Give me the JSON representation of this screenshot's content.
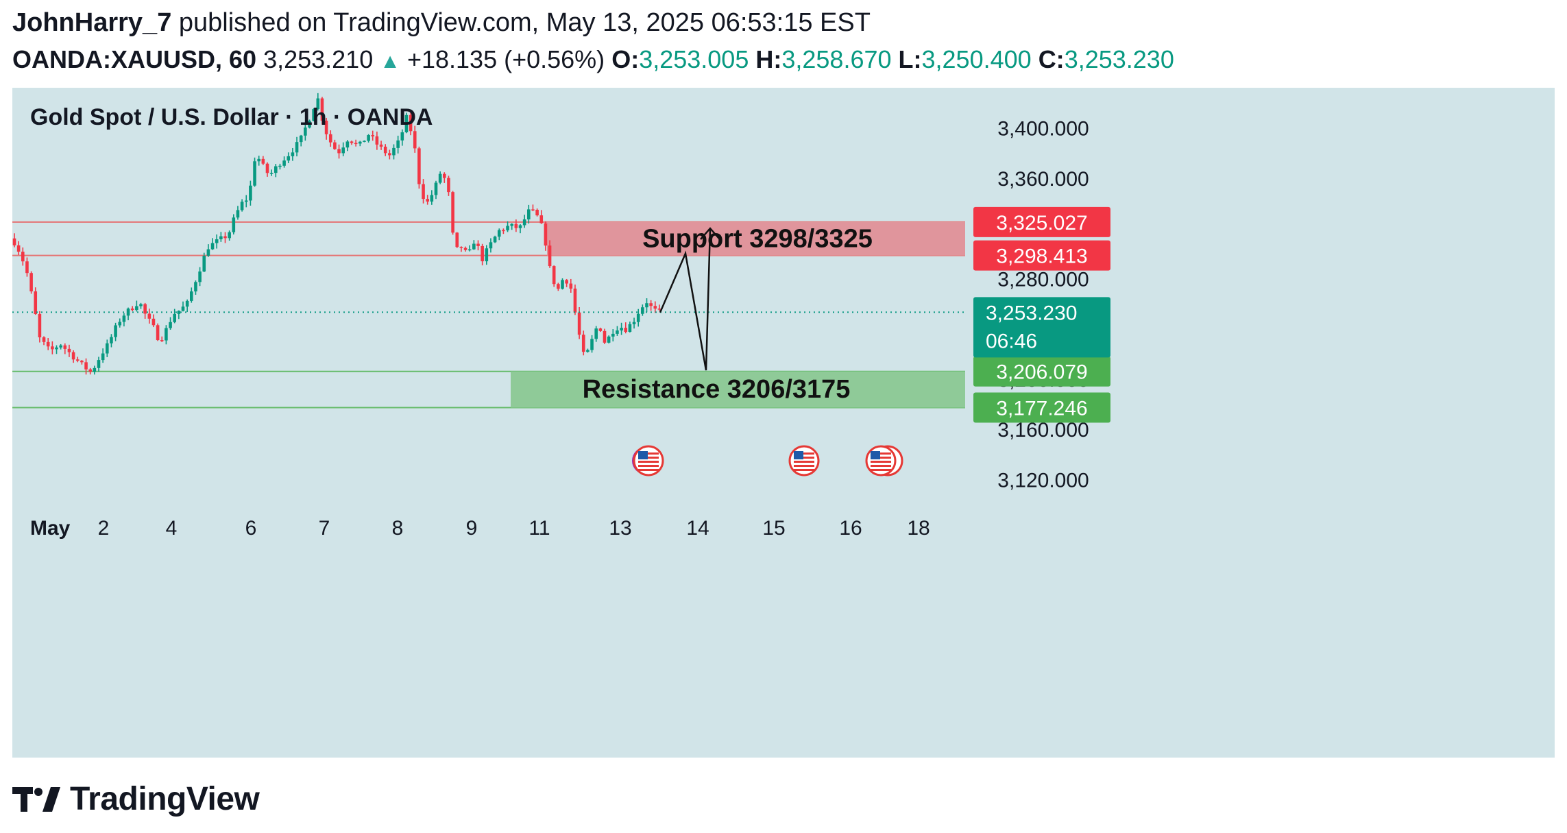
{
  "header": {
    "author": "JohnHarry_7",
    "published_text": "published on TradingView.com, May 13, 2025 06:53:15 EST",
    "symbol": "OANDA:XAUUSD, 60",
    "last_price": "3,253.210",
    "change": "+18.135 (+0.56%)",
    "open_label": "O:",
    "open": "3,253.005",
    "high_label": "H:",
    "high": "3,258.670",
    "low_label": "L:",
    "low": "3,250.400",
    "close_label": "C:",
    "close": "3,253.230"
  },
  "brand": {
    "name": "TradingView",
    "logo_icon": "tradingview-logo-icon"
  },
  "colors": {
    "up": "#089981",
    "down": "#f23645",
    "chart_bg": "#d1e4e8",
    "support_zone": "#e0959c",
    "resistance_zone": "#8fca98",
    "red_tag": "#f23645",
    "green_tag": "#4caf50",
    "price_tag": "#089981"
  },
  "chart_data": {
    "type": "candlestick",
    "title": "Gold Spot / U.S. Dollar · 1h · OANDA",
    "ylim": [
      3100,
      3432
    ],
    "x_ticks": [
      "May",
      "2",
      "4",
      "6",
      "7",
      "8",
      "9",
      "11",
      "13",
      "14",
      "15",
      "16",
      "18"
    ],
    "y_ticks": [
      {
        "value": 3400,
        "label": "3,400.000"
      },
      {
        "value": 3360,
        "label": "3,360.000"
      },
      {
        "value": 3280,
        "label": "3,280.000"
      },
      {
        "value": 3200,
        "label": "3,200.000"
      },
      {
        "value": 3160,
        "label": "3,160.000"
      },
      {
        "value": 3120,
        "label": "3,120.000"
      }
    ],
    "price_path": [
      [
        0,
        3312
      ],
      [
        10,
        3302
      ],
      [
        20,
        3288
      ],
      [
        30,
        3262
      ],
      [
        40,
        3232
      ],
      [
        55,
        3222
      ],
      [
        70,
        3228
      ],
      [
        85,
        3220
      ],
      [
        100,
        3212
      ],
      [
        115,
        3205
      ],
      [
        130,
        3220
      ],
      [
        140,
        3228
      ],
      [
        150,
        3240
      ],
      [
        160,
        3250
      ],
      [
        175,
        3257
      ],
      [
        185,
        3262
      ],
      [
        195,
        3250
      ],
      [
        205,
        3242
      ],
      [
        215,
        3230
      ],
      [
        225,
        3240
      ],
      [
        235,
        3252
      ],
      [
        245,
        3255
      ],
      [
        255,
        3260
      ],
      [
        265,
        3275
      ],
      [
        275,
        3290
      ],
      [
        285,
        3305
      ],
      [
        300,
        3310
      ],
      [
        315,
        3315
      ],
      [
        325,
        3330
      ],
      [
        335,
        3340
      ],
      [
        345,
        3345
      ],
      [
        355,
        3380
      ],
      [
        365,
        3370
      ],
      [
        375,
        3362
      ],
      [
        390,
        3372
      ],
      [
        405,
        3380
      ],
      [
        420,
        3390
      ],
      [
        435,
        3410
      ],
      [
        445,
        3425
      ],
      [
        455,
        3400
      ],
      [
        465,
        3388
      ],
      [
        475,
        3380
      ],
      [
        490,
        3392
      ],
      [
        505,
        3385
      ],
      [
        520,
        3395
      ],
      [
        535,
        3385
      ],
      [
        550,
        3378
      ],
      [
        565,
        3390
      ],
      [
        575,
        3408
      ],
      [
        585,
        3392
      ],
      [
        595,
        3350
      ],
      [
        605,
        3340
      ],
      [
        615,
        3350
      ],
      [
        625,
        3365
      ],
      [
        635,
        3355
      ],
      [
        645,
        3302
      ],
      [
        655,
        3305
      ],
      [
        665,
        3298
      ],
      [
        675,
        3312
      ],
      [
        685,
        3295
      ],
      [
        695,
        3305
      ],
      [
        710,
        3318
      ],
      [
        725,
        3322
      ],
      [
        740,
        3320
      ],
      [
        755,
        3335
      ],
      [
        765,
        3330
      ],
      [
        775,
        3318
      ],
      [
        785,
        3285
      ],
      [
        795,
        3270
      ],
      [
        805,
        3282
      ],
      [
        815,
        3272
      ],
      [
        825,
        3240
      ],
      [
        835,
        3215
      ],
      [
        845,
        3230
      ],
      [
        855,
        3245
      ],
      [
        865,
        3228
      ],
      [
        875,
        3238
      ],
      [
        885,
        3242
      ],
      [
        895,
        3240
      ],
      [
        905,
        3245
      ],
      [
        915,
        3255
      ],
      [
        925,
        3262
      ],
      [
        935,
        3255
      ],
      [
        945,
        3253.23
      ]
    ],
    "support_zone": {
      "label": "Support 3298/3325",
      "from": 3298.413,
      "to": 3325.027
    },
    "resistance_zone": {
      "label": "Resistance 3206/3175",
      "from": 3177.246,
      "to": 3206.079
    },
    "projection_path": [
      [
        945,
        3253
      ],
      [
        982,
        3300
      ],
      [
        1012,
        3207
      ],
      [
        1018,
        3320
      ]
    ],
    "price_tags": [
      {
        "value": 3325.027,
        "label": "3,325.027",
        "color": "red"
      },
      {
        "value": 3298.413,
        "label": "3,298.413",
        "color": "red"
      },
      {
        "value": 3206.079,
        "label": "3,206.079",
        "color": "green"
      },
      {
        "value": 3177.246,
        "label": "3,177.246",
        "color": "green"
      }
    ],
    "current_price": {
      "value": 3253.23,
      "label": "3,253.230",
      "countdown": "06:46"
    },
    "event_icons": [
      {
        "bar": 946,
        "icon": "us-flag-icon"
      },
      {
        "bar": 1173,
        "icon": "us-flag-icon"
      },
      {
        "bar": 1285,
        "icon": "us-flag-icon"
      }
    ]
  }
}
